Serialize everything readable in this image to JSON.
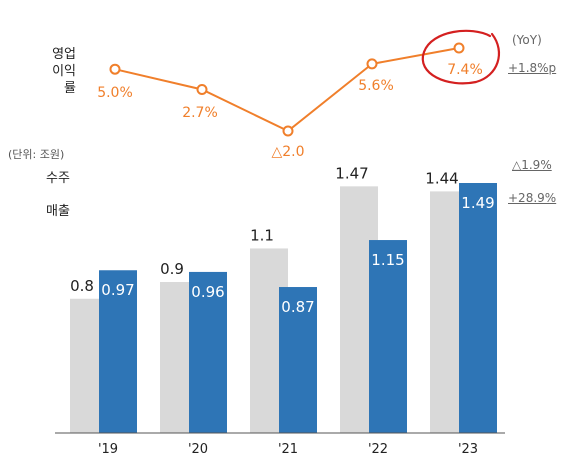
{
  "chart_data": {
    "type": "bar",
    "categories": [
      "'19",
      "'20",
      "'21",
      "'22",
      "'23"
    ],
    "series": [
      {
        "name": "수주",
        "values": [
          0.8,
          0.9,
          1.1,
          1.47,
          1.44
        ],
        "color": "#d9d9d9",
        "labels": [
          "0.8",
          "0.9",
          "1.1",
          "1.47",
          "1.44"
        ]
      },
      {
        "name": "매출",
        "values": [
          0.97,
          0.96,
          0.87,
          1.15,
          1.49
        ],
        "color": "#2e75b6",
        "labels": [
          "0.97",
          "0.96",
          "0.87",
          "1.15",
          "1.49"
        ]
      }
    ],
    "line": {
      "name": "영업 이익률",
      "values": [
        5.0,
        2.7,
        -2.0,
        5.6,
        7.4
      ],
      "labels": [
        "5.0%",
        "2.7%",
        "△2.0",
        "5.6%",
        "7.4%"
      ],
      "color": "#f07f2b",
      "highlight_index": 4,
      "highlight_color": "#d42020"
    },
    "ylim": [
      0,
      1.6
    ]
  },
  "labels": {
    "line_title_1": "영업",
    "line_title_2": "이익률",
    "unit": "(단위: 조원)",
    "order_label": "수주",
    "sales_label": "매출"
  },
  "yoy": {
    "header": "(YoY)",
    "margin": "+1.8%p",
    "orders": "△1.9%",
    "sales": "+28.9%"
  }
}
